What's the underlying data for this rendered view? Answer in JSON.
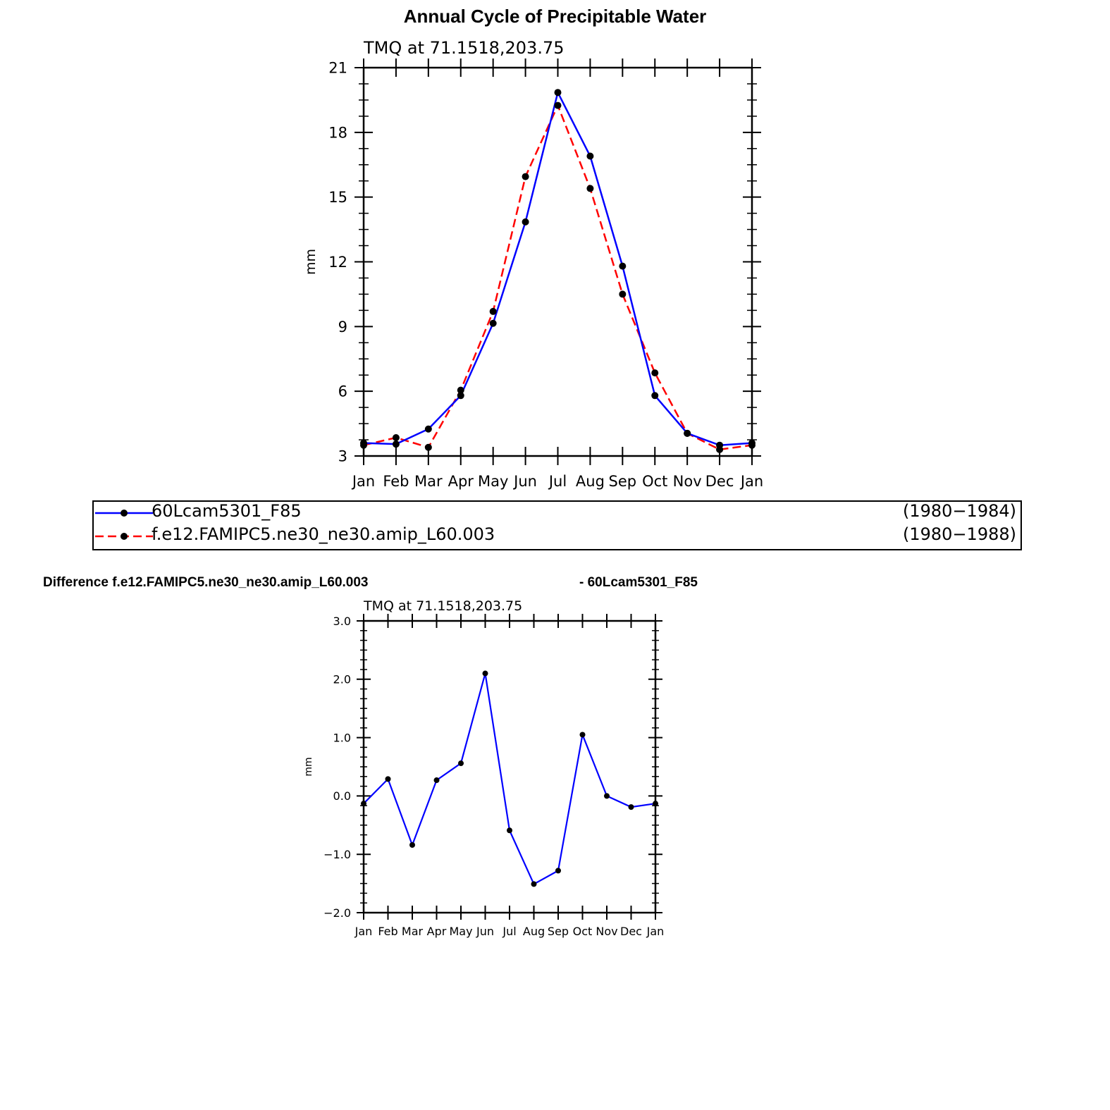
{
  "title": "Annual Cycle of Precipitable Water",
  "legend": {
    "entries": [
      {
        "name": "60Lcam5301_F85",
        "years": "(1980−1984)",
        "color": "#0000ff",
        "dash": "solid"
      },
      {
        "name": "f.e12.FAMIPC5.ne30_ne30.amip_L60.003",
        "years": "(1980−1988)",
        "color": "#ff0000",
        "dash": "dashed"
      }
    ]
  },
  "difference_label": {
    "left": "Difference f.e12.FAMIPC5.ne30_ne30.amip_L60.003",
    "right": "- 60Lcam5301_F85"
  },
  "chart_data": [
    {
      "type": "line",
      "subtitle": "TMQ  at  71.1518,203.75",
      "ylabel": "mm",
      "xlabel": "",
      "categories": [
        "Jan",
        "Feb",
        "Mar",
        "Apr",
        "May",
        "Jun",
        "Jul",
        "Aug",
        "Sep",
        "Oct",
        "Nov",
        "Dec",
        "Jan"
      ],
      "ylim": [
        3,
        21
      ],
      "yticks": [
        3,
        6,
        9,
        12,
        15,
        18,
        21
      ],
      "ytick_labels": [
        "3",
        "6",
        "9",
        "12",
        "15",
        "18",
        "21"
      ],
      "grid": false,
      "series": [
        {
          "name": "60Lcam5301_F85",
          "color": "#0000ff",
          "dash": "solid",
          "values": [
            3.6,
            3.55,
            4.25,
            5.8,
            9.15,
            13.85,
            19.85,
            16.9,
            11.8,
            5.8,
            4.05,
            3.5,
            3.6
          ]
        },
        {
          "name": "f.e12.FAMIPC5.ne30_ne30.amip_L60.003",
          "color": "#ff0000",
          "dash": "dashed",
          "values": [
            3.5,
            3.85,
            3.4,
            6.05,
            9.7,
            15.95,
            19.25,
            15.4,
            10.5,
            6.85,
            4.05,
            3.3,
            3.5
          ]
        }
      ]
    },
    {
      "type": "line",
      "subtitle": "TMQ  at  71.1518,203.75",
      "ylabel": "mm",
      "xlabel": "",
      "categories": [
        "Jan",
        "Feb",
        "Mar",
        "Apr",
        "May",
        "Jun",
        "Jul",
        "Aug",
        "Sep",
        "Oct",
        "Nov",
        "Dec",
        "Jan"
      ],
      "ylim": [
        -2.0,
        3.0
      ],
      "yticks": [
        -2.0,
        -1.0,
        0.0,
        1.0,
        2.0,
        3.0
      ],
      "ytick_labels": [
        "−2.0",
        "−1.0",
        "0.0",
        "1.0",
        "2.0",
        "3.0"
      ],
      "grid": false,
      "series": [
        {
          "name": "",
          "color": "#0000ff",
          "dash": "solid",
          "values": [
            -0.13,
            0.29,
            -0.84,
            0.27,
            0.56,
            2.1,
            -0.59,
            -1.51,
            -1.28,
            1.05,
            0.0,
            -0.19,
            -0.13
          ]
        }
      ]
    }
  ]
}
